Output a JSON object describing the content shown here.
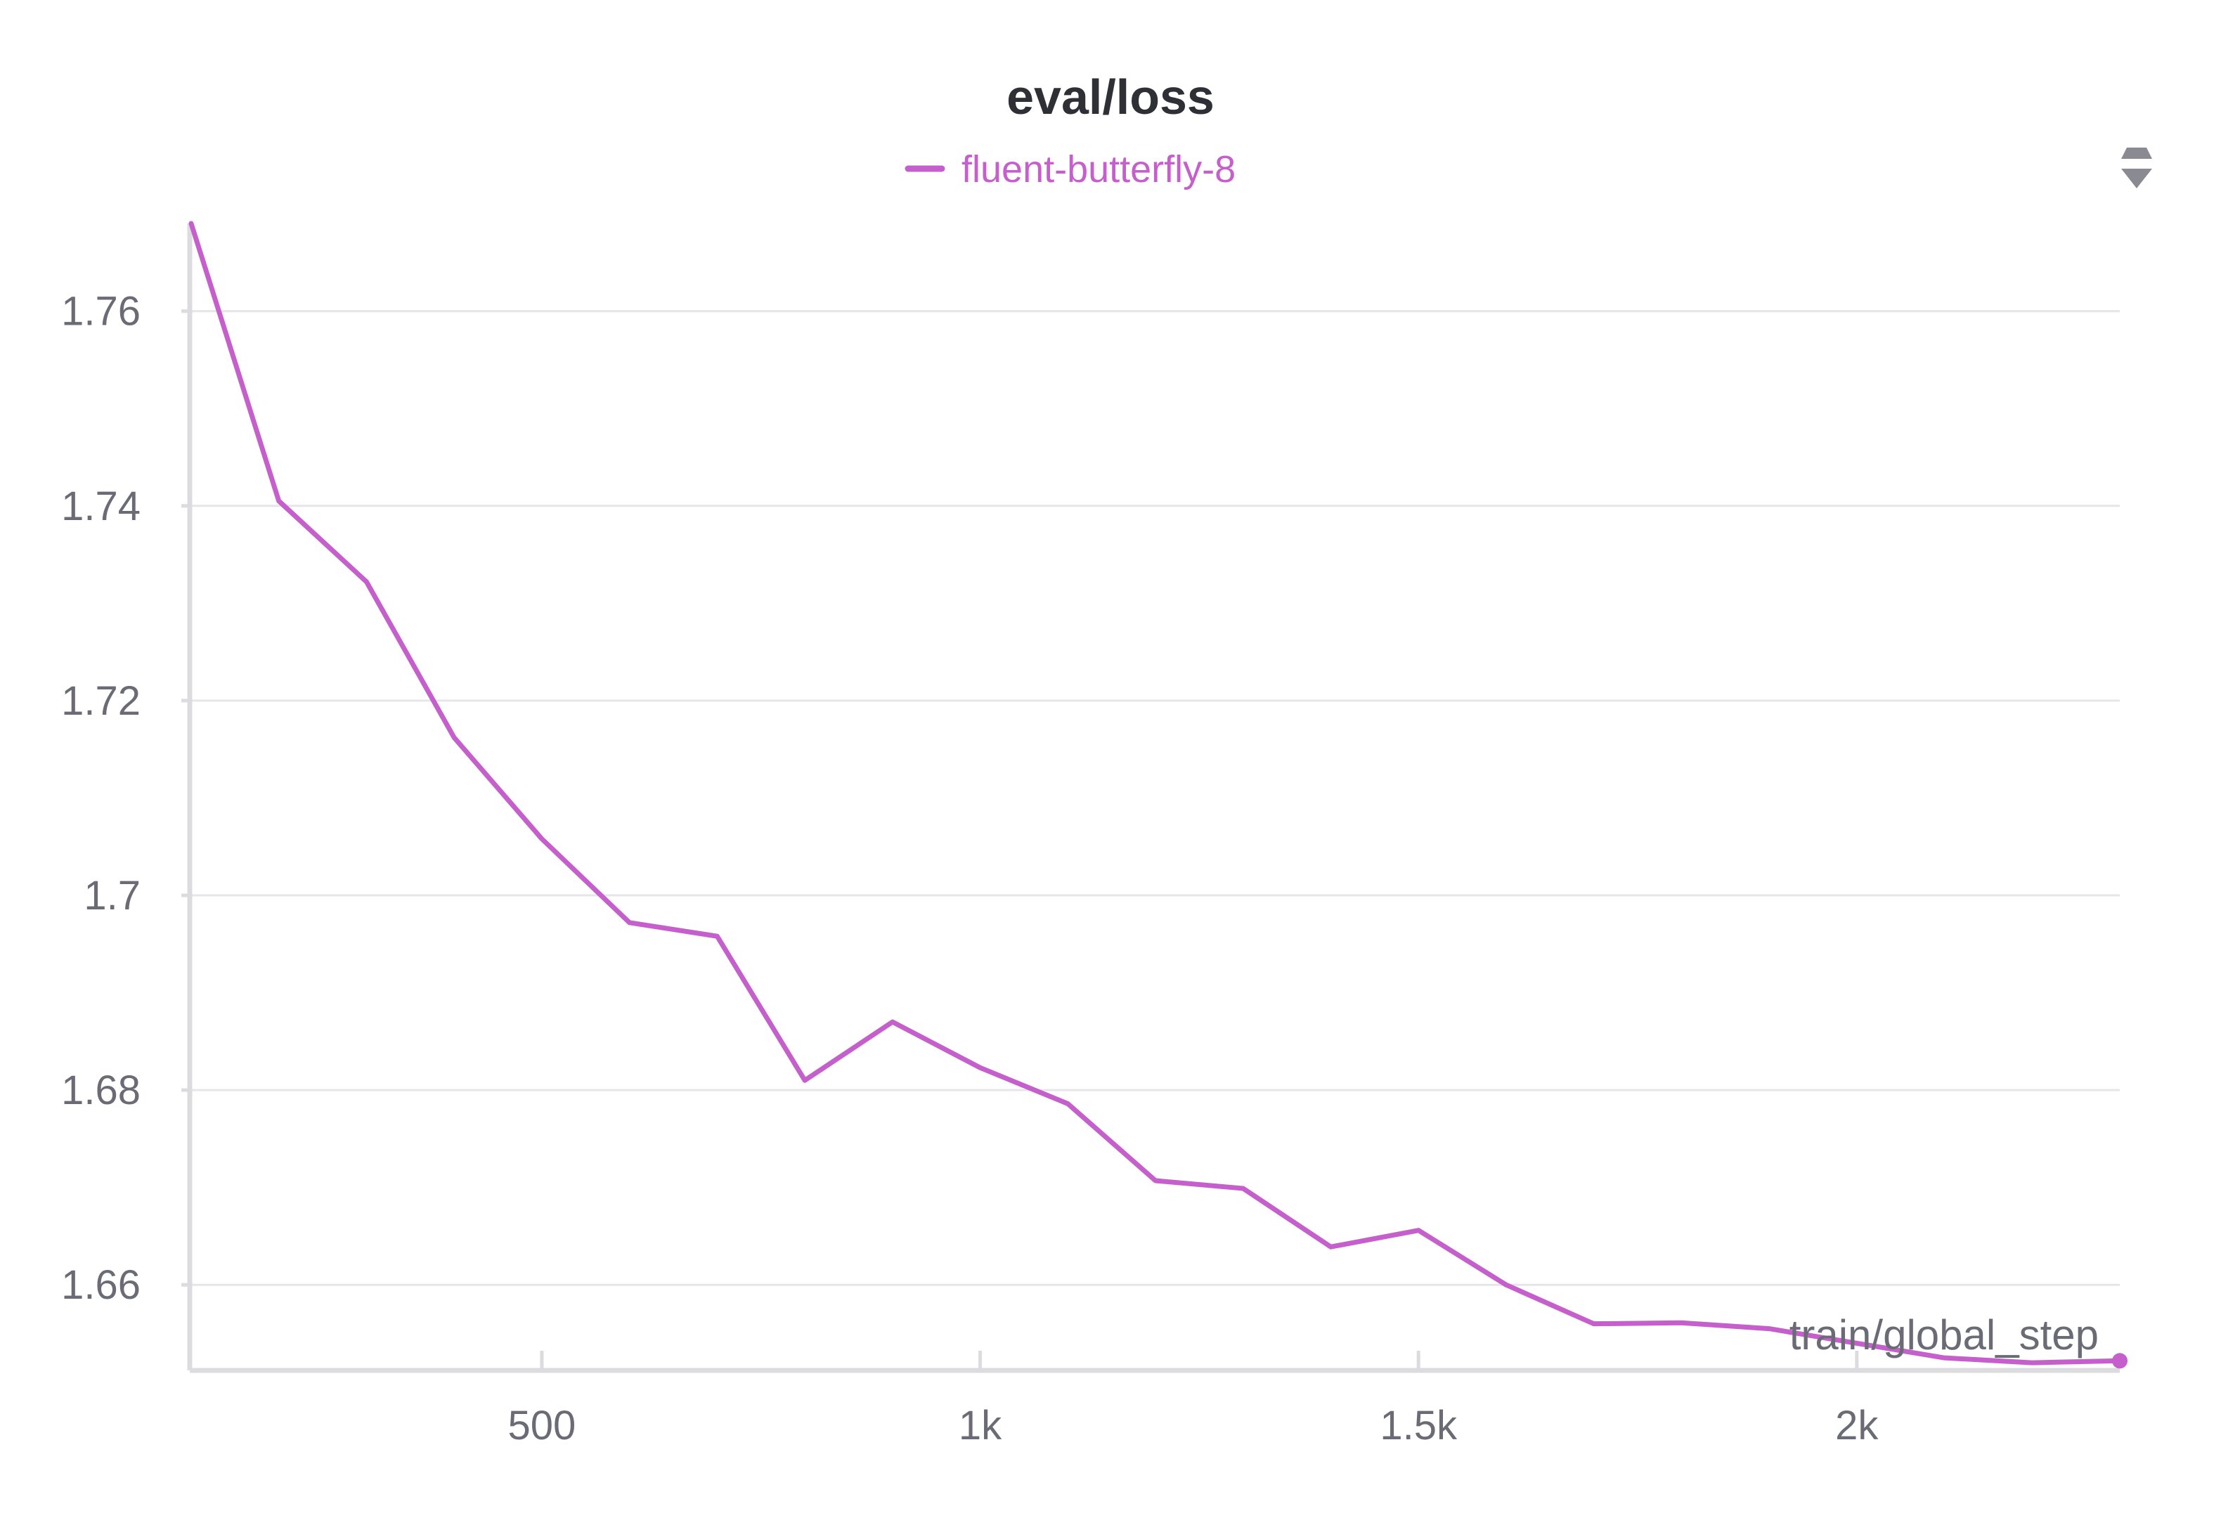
{
  "chart_data": {
    "type": "line",
    "title": "eval/loss",
    "xlabel": "train/global_step",
    "ylabel": "",
    "x_ticks": [
      {
        "value": 500,
        "label": "500"
      },
      {
        "value": 1000,
        "label": "1k"
      },
      {
        "value": 1500,
        "label": "1.5k"
      },
      {
        "value": 2000,
        "label": "2k"
      }
    ],
    "y_ticks": [
      {
        "value": 1.66,
        "label": "1.66"
      },
      {
        "value": 1.68,
        "label": "1.68"
      },
      {
        "value": 1.7,
        "label": "1.7"
      },
      {
        "value": 1.72,
        "label": "1.72"
      },
      {
        "value": 1.74,
        "label": "1.74"
      },
      {
        "value": 1.76,
        "label": "1.76"
      }
    ],
    "xlim": [
      100,
      2300
    ],
    "ylim": [
      1.6515,
      1.769
    ],
    "grid": true,
    "legend_position": "top-center",
    "series": [
      {
        "name": "fluent-butterfly-8",
        "color": "#c55fcc",
        "x": [
          100,
          200,
          300,
          400,
          500,
          600,
          700,
          800,
          900,
          1000,
          1100,
          1200,
          1300,
          1400,
          1500,
          1600,
          1700,
          1800,
          1900,
          2000,
          2100,
          2200,
          2300
        ],
        "y": [
          1.769,
          1.7405,
          1.7322,
          1.7162,
          1.7058,
          1.6972,
          1.6958,
          1.681,
          1.687,
          1.6823,
          1.6786,
          1.6707,
          1.6699,
          1.6639,
          1.6656,
          1.66,
          1.656,
          1.6561,
          1.6555,
          1.654,
          1.6525,
          1.652,
          1.6522
        ]
      }
    ]
  }
}
